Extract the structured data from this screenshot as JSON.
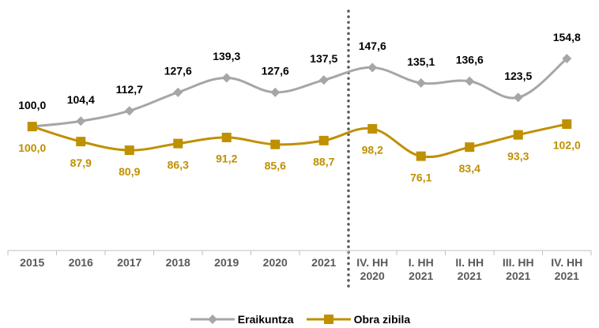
{
  "chart_data": {
    "type": "line",
    "categories": [
      "2015",
      "2016",
      "2017",
      "2018",
      "2019",
      "2020",
      "2021",
      "IV. HH\n2020",
      "I. HH\n2021",
      "II. HH\n2021",
      "III. HH\n2021",
      "IV. HH\n2021"
    ],
    "series": [
      {
        "name": "Eraikuntza",
        "color": "#a6a6a6",
        "marker": "diamond",
        "values": [
          100.0,
          104.4,
          112.7,
          127.6,
          139.3,
          127.6,
          137.5,
          147.6,
          135.1,
          136.6,
          123.5,
          154.8
        ],
        "value_labels": [
          "100,0",
          "104,4",
          "112,7",
          "127,6",
          "139,3",
          "127,6",
          "137,5",
          "147,6",
          "135,1",
          "136,6",
          "123,5",
          "154,8"
        ]
      },
      {
        "name": "Obra zibila",
        "color": "#bf9000",
        "marker": "square",
        "values": [
          100.0,
          87.9,
          80.9,
          86.3,
          91.2,
          85.6,
          88.7,
          98.2,
          76.1,
          83.4,
          93.3,
          102.0
        ],
        "value_labels": [
          "100,0",
          "87,9",
          "80,9",
          "86,3",
          "91,2",
          "85,6",
          "88,7",
          "98,2",
          "76,1",
          "83,4",
          "93,3",
          "102,0"
        ]
      }
    ],
    "ylim": [
      0,
      160
    ]
  }
}
